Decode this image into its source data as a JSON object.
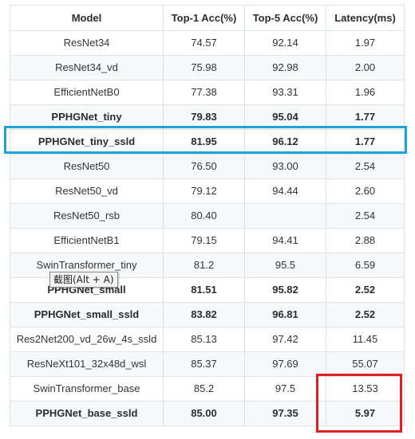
{
  "table": {
    "headers": [
      "Model",
      "Top-1 Acc(%)",
      "Top-5 Acc(%)",
      "Latency(ms)"
    ],
    "rows": [
      {
        "model": "ResNet34",
        "top1": "74.57",
        "top5": "92.14",
        "latency": "1.97",
        "bold": false
      },
      {
        "model": "ResNet34_vd",
        "top1": "75.98",
        "top5": "92.98",
        "latency": "2.00",
        "bold": false
      },
      {
        "model": "EfficientNetB0",
        "top1": "77.38",
        "top5": "93.31",
        "latency": "1.96",
        "bold": false
      },
      {
        "model": "PPHGNet_tiny",
        "top1": "79.83",
        "top5": "95.04",
        "latency": "1.77",
        "bold": true
      },
      {
        "model": "PPHGNet_tiny_ssld",
        "top1": "81.95",
        "top5": "96.12",
        "latency": "1.77",
        "bold": true
      },
      {
        "model": "ResNet50",
        "top1": "76.50",
        "top5": "93.00",
        "latency": "2.54",
        "bold": false
      },
      {
        "model": "ResNet50_vd",
        "top1": "79.12",
        "top5": "94.44",
        "latency": "2.60",
        "bold": false
      },
      {
        "model": "ResNet50_rsb",
        "top1": "80.40",
        "top5": "",
        "latency": "2.54",
        "bold": false
      },
      {
        "model": "EfficientNetB1",
        "top1": "79.15",
        "top5": "94.41",
        "latency": "2.88",
        "bold": false
      },
      {
        "model": "SwinTransformer_tiny",
        "top1": "81.2",
        "top5": "95.5",
        "latency": "6.59",
        "bold": false
      },
      {
        "model": "PPHGNet_small",
        "top1": "81.51",
        "top5": "95.82",
        "latency": "2.52",
        "bold": true
      },
      {
        "model": "PPHGNet_small_ssld",
        "top1": "83.82",
        "top5": "96.81",
        "latency": "2.52",
        "bold": true
      },
      {
        "model": "Res2Net200_vd_26w_4s_ssld",
        "top1": "85.13",
        "top5": "97.42",
        "latency": "11.45",
        "bold": false
      },
      {
        "model": "ResNeXt101_32x48d_wsl",
        "top1": "85.37",
        "top5": "97.69",
        "latency": "55.07",
        "bold": false
      },
      {
        "model": "SwinTransformer_base",
        "top1": "85.2",
        "top5": "97.5",
        "latency": "13.53",
        "bold": false
      },
      {
        "model": "PPHGNet_base_ssld",
        "top1": "85.00",
        "top5": "97.35",
        "latency": "5.97",
        "bold": true
      }
    ]
  },
  "tooltip": {
    "text": "截图(Alt + A)"
  },
  "annotations": {
    "blue_box_color": "#1fa3df",
    "red_box_color": "#e02020"
  }
}
